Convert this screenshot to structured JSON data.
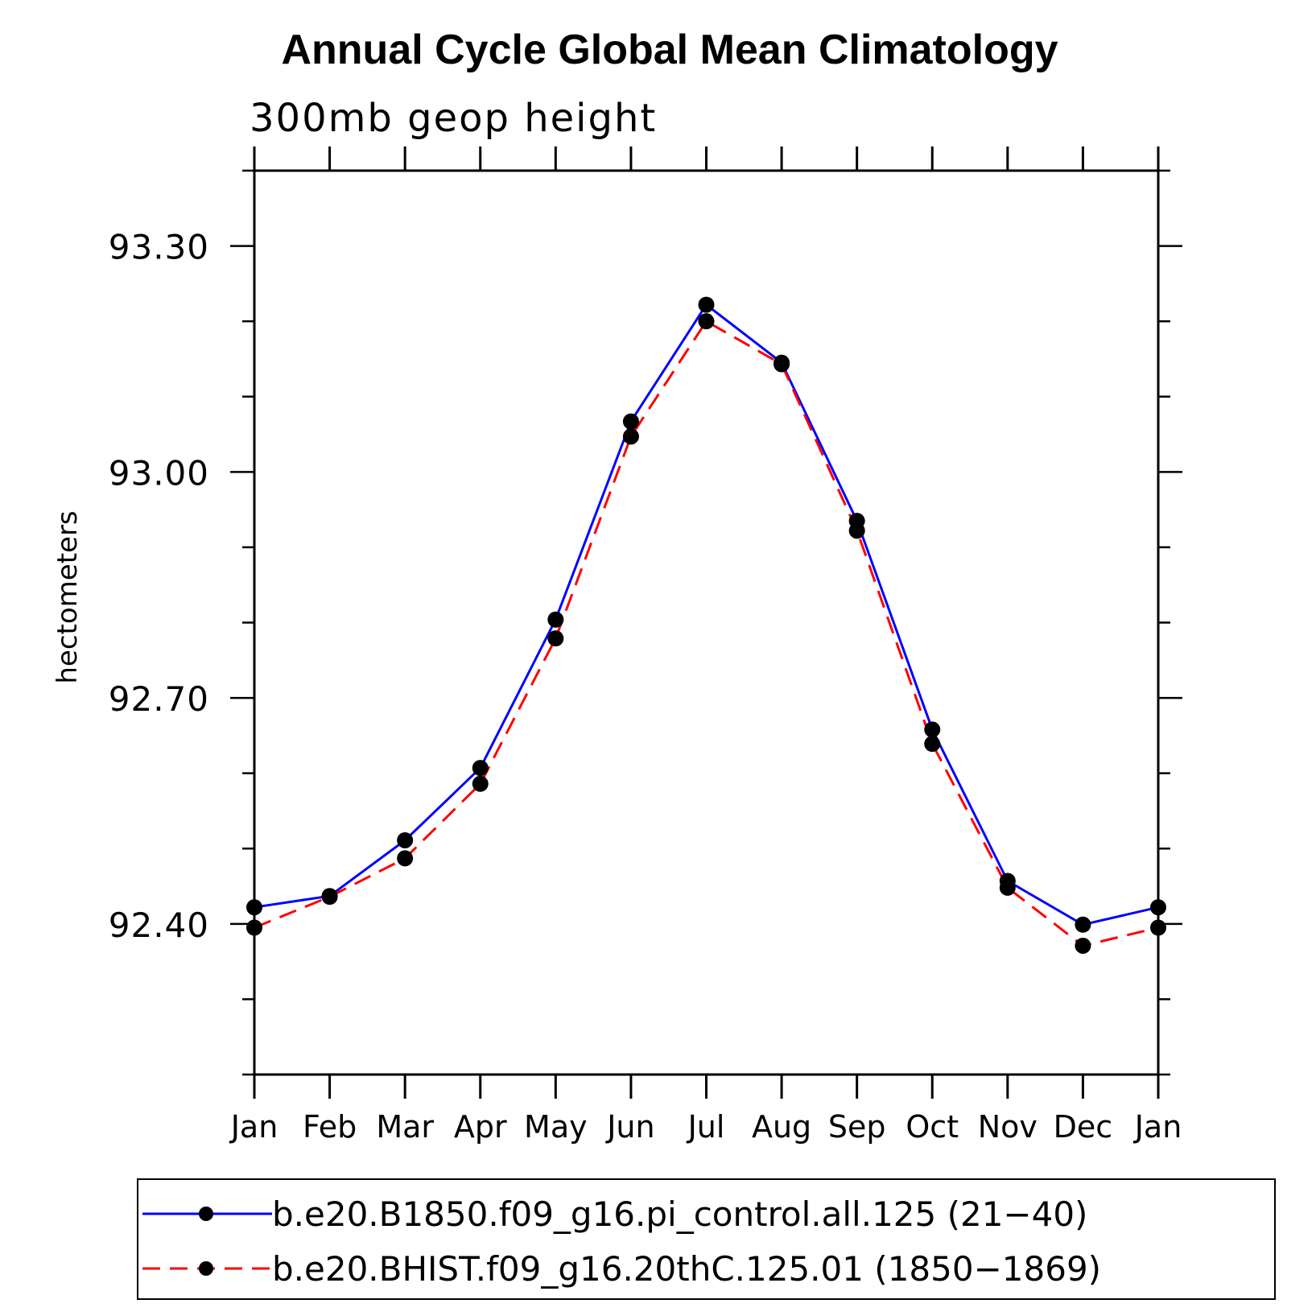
{
  "chart_data": {
    "type": "line",
    "title": "Annual Cycle Global Mean Climatology",
    "subtitle": "300mb geop height",
    "xlabel": "",
    "ylabel": "hectometers",
    "categories": [
      "Jan",
      "Feb",
      "Mar",
      "Apr",
      "May",
      "Jun",
      "Jul",
      "Aug",
      "Sep",
      "Oct",
      "Nov",
      "Dec",
      "Jan"
    ],
    "yticks": [
      "92.40",
      "92.70",
      "93.00",
      "93.30"
    ],
    "ylim": [
      92.2,
      93.4
    ],
    "grid": false,
    "legend_position": "bottom",
    "series": [
      {
        "name": "b.e20.B1850.f09_g16.pi_control.all.125 (21−40)",
        "color": "#0000ff",
        "style": "solid",
        "values": [
          92.422,
          92.437,
          92.511,
          92.607,
          92.804,
          93.067,
          93.222,
          93.145,
          92.935,
          92.658,
          92.457,
          92.399,
          92.422
        ]
      },
      {
        "name": "b.e20.BHIST.f09_g16.20thC.125.01 (1850−1869)",
        "color": "#ff0000",
        "style": "dashed",
        "values": [
          92.395,
          92.436,
          92.487,
          92.586,
          92.779,
          93.047,
          93.2,
          93.143,
          92.922,
          92.639,
          92.448,
          92.371,
          92.395
        ]
      }
    ]
  }
}
